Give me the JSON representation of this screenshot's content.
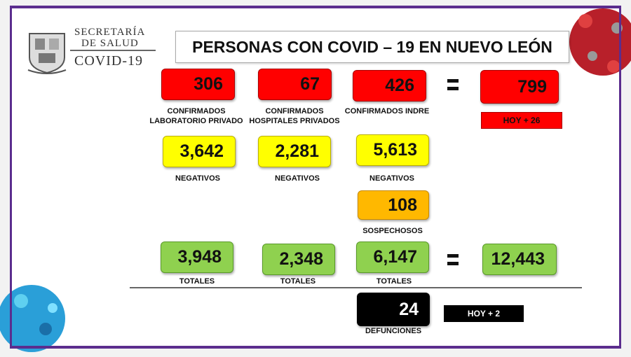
{
  "logo": {
    "line1": "SECRETARÍA",
    "line2": "DE SALUD",
    "line3": "COVID-19"
  },
  "title": "PERSONAS CON COVID – 19 EN NUEVO LEÓN",
  "confirmed": [
    {
      "value": "306",
      "label": "CONFIRMADOS\nLABORATORIO PRIVADO"
    },
    {
      "value": "67",
      "label": "CONFIRMADOS\nHOSPITALES PRIVADOS"
    },
    {
      "value": "426",
      "label": "CONFIRMADOS INDRE"
    }
  ],
  "confirmed_total": {
    "value": "799",
    "today": "HOY + 26"
  },
  "negatives": [
    {
      "value": "3,642",
      "label": "NEGATIVOS"
    },
    {
      "value": "2,281",
      "label": "NEGATIVOS"
    },
    {
      "value": "5,613",
      "label": "NEGATIVOS"
    }
  ],
  "suspects": {
    "value": "108",
    "label": "SOSPECHOSOS"
  },
  "totals": [
    {
      "value": "3,948",
      "label": "TOTALES"
    },
    {
      "value": "2,348",
      "label": "TOTALES"
    },
    {
      "value": "6,147",
      "label": "TOTALES"
    }
  ],
  "grand_total": "12,443",
  "deaths": {
    "value": "24",
    "label": "DEFUNCIONES",
    "today": "HOY + 2"
  }
}
